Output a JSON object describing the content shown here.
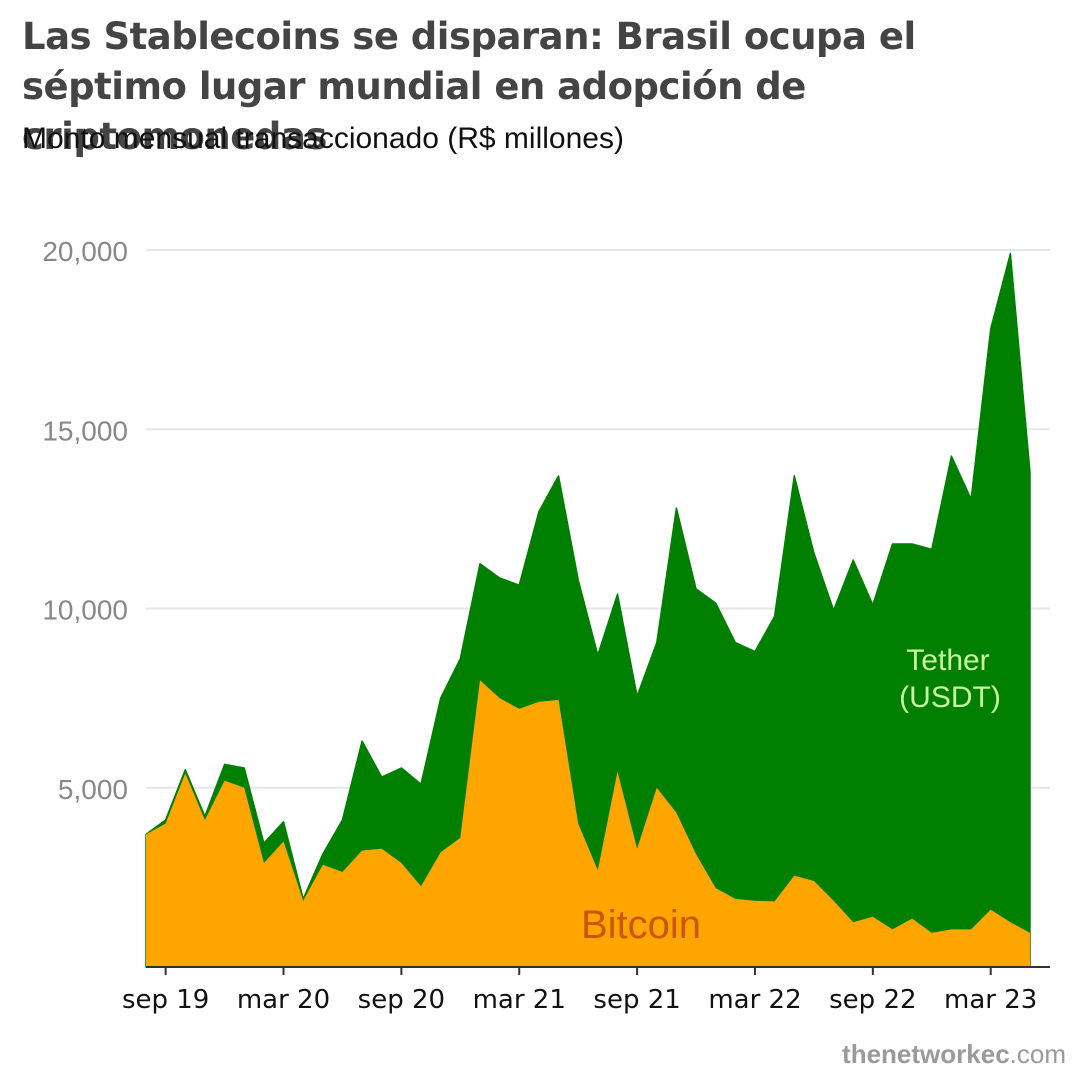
{
  "title": "Las Stablecoins se disparan: Brasil ocupa el séptimo lugar mundial en adopción de criptomonedas",
  "subtitle": "Monto mensual transaccionado (R$ millones)",
  "source": {
    "bold": "thenetworkec",
    "rest": ".com"
  },
  "colors": {
    "bitcoin": "#FFA500",
    "tether": "#007F00",
    "bitcoin_label": "#CC5500",
    "tether_label": "#C8F5A0",
    "grid": "#E6E6E6",
    "tick_text": "#888888",
    "axis": "#333333"
  },
  "chart_data": {
    "type": "area",
    "stacked": true,
    "title": "Las Stablecoins se disparan: Brasil ocupa el séptimo lugar mundial en adopción de criptomonedas",
    "subtitle": "Monto mensual transaccionado (R$ millones)",
    "xlabel": "",
    "ylabel": "",
    "ylim": [
      0,
      20000
    ],
    "yticks": [
      5000,
      10000,
      15000,
      20000
    ],
    "ytick_labels": [
      "5,000",
      "10,000",
      "15,000",
      "20,000"
    ],
    "grid": "horizontal",
    "x": [
      "2019-08",
      "2019-09",
      "2019-10",
      "2019-11",
      "2019-12",
      "2020-01",
      "2020-02",
      "2020-03",
      "2020-04",
      "2020-05",
      "2020-06",
      "2020-07",
      "2020-08",
      "2020-09",
      "2020-10",
      "2020-11",
      "2020-12",
      "2021-01",
      "2021-02",
      "2021-03",
      "2021-04",
      "2021-05",
      "2021-06",
      "2021-07",
      "2021-08",
      "2021-09",
      "2021-10",
      "2021-11",
      "2021-12",
      "2022-01",
      "2022-02",
      "2022-03",
      "2022-04",
      "2022-05",
      "2022-06",
      "2022-07",
      "2022-08",
      "2022-09",
      "2022-10",
      "2022-11",
      "2022-12",
      "2023-01",
      "2023-02",
      "2023-03",
      "2023-04",
      "2023-05"
    ],
    "xtick_labels": [
      {
        "x": "2019-09",
        "label": "sep 19"
      },
      {
        "x": "2020-03",
        "label": "mar 20"
      },
      {
        "x": "2020-09",
        "label": "sep 20"
      },
      {
        "x": "2021-03",
        "label": "mar 21"
      },
      {
        "x": "2021-09",
        "label": "sep 21"
      },
      {
        "x": "2022-03",
        "label": "mar 22"
      },
      {
        "x": "2022-09",
        "label": "sep 22"
      },
      {
        "x": "2023-03",
        "label": "mar 23"
      }
    ],
    "series": [
      {
        "name": "Bitcoin",
        "values": [
          3700,
          4000,
          5400,
          4100,
          5200,
          5000,
          2900,
          3500,
          1850,
          2850,
          2650,
          3250,
          3300,
          2900,
          2250,
          3200,
          3600,
          8000,
          7500,
          7200,
          7400,
          7450,
          4000,
          2700,
          5450,
          3300,
          5000,
          4300,
          3150,
          2200,
          1900,
          1850,
          1830,
          2550,
          2400,
          1850,
          1250,
          1400,
          1050,
          1350,
          950,
          1050,
          1050,
          1600,
          1250,
          950
        ]
      },
      {
        "name": "Tether (USDT)",
        "values": [
          0,
          100,
          100,
          100,
          450,
          550,
          550,
          550,
          50,
          300,
          1450,
          3050,
          2000,
          2650,
          2850,
          4300,
          5000,
          3250,
          3350,
          3450,
          5300,
          6250,
          6800,
          6000,
          4950,
          4250,
          4050,
          8500,
          7400,
          7950,
          7150,
          6950,
          7950,
          11150,
          9150,
          8100,
          10100,
          8700,
          10750,
          10450,
          10700,
          13200,
          12000,
          16200,
          18650,
          12850
        ]
      }
    ],
    "annotations": [
      {
        "text": "Tether",
        "text2": "(USDT)",
        "series": "Tether (USDT)"
      },
      {
        "text": "Bitcoin",
        "series": "Bitcoin"
      }
    ]
  }
}
